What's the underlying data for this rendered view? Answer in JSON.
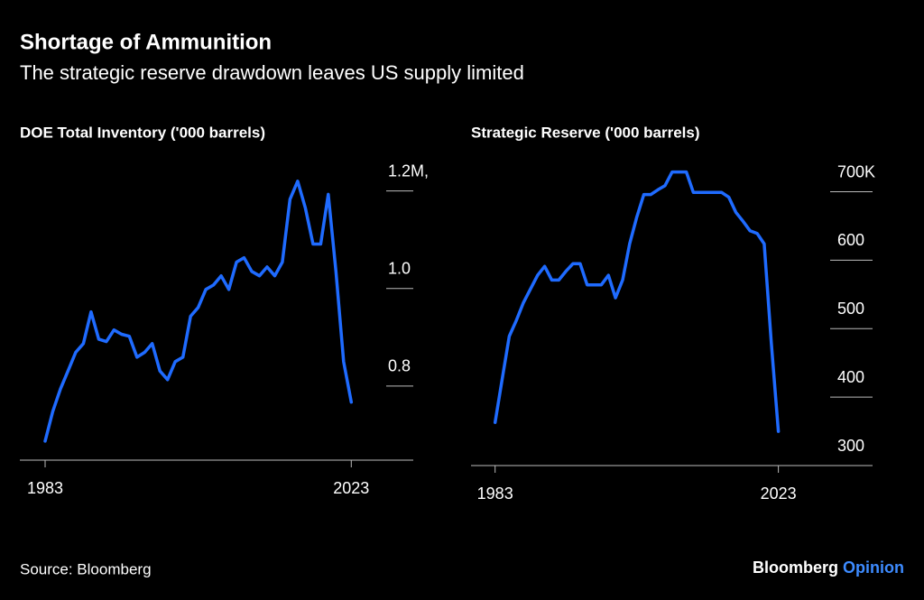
{
  "title": "Shortage of Ammunition",
  "subtitle": "The strategic reserve drawdown leaves US supply limited",
  "source": "Source: Bloomberg",
  "brand": {
    "name": "Bloomberg",
    "tag": "Opinion"
  },
  "chart_data": [
    {
      "type": "line",
      "title": "DOE Total Inventory ('000 barrels)",
      "color": "#1f6bff",
      "x": [
        1983,
        1984,
        1985,
        1986,
        1987,
        1988,
        1989,
        1990,
        1991,
        1992,
        1993,
        1994,
        1995,
        1996,
        1997,
        1998,
        1999,
        2000,
        2001,
        2002,
        2003,
        2004,
        2005,
        2006,
        2007,
        2008,
        2009,
        2010,
        2011,
        2012,
        2013,
        2014,
        2015,
        2016,
        2017,
        2018,
        2019,
        2020,
        2021,
        2022,
        2023
      ],
      "values": [
        0.687,
        0.748,
        0.794,
        0.831,
        0.869,
        0.887,
        0.952,
        0.896,
        0.891,
        0.915,
        0.906,
        0.902,
        0.859,
        0.869,
        0.887,
        0.831,
        0.813,
        0.85,
        0.859,
        0.943,
        0.961,
        0.998,
        1.007,
        1.026,
        0.998,
        1.054,
        1.063,
        1.035,
        1.026,
        1.044,
        1.026,
        1.054,
        1.183,
        1.22,
        1.165,
        1.091,
        1.091,
        1.193,
        1.035,
        0.85,
        0.767
      ],
      "xlim": [
        1979.7,
        2031.1
      ],
      "xticks": [
        1983,
        2023
      ],
      "ylim": [
        0.648,
        1.24
      ],
      "yticks": [
        0.8,
        {
          "value": 1,
          "label": "1.0"
        },
        {
          "value": 1.2,
          "label": "1.2M,"
        }
      ]
    },
    {
      "type": "line",
      "title": "Strategic Reserve ('000 barrels)",
      "color": "#1f6bff",
      "x": [
        1983,
        1984,
        1985,
        1986,
        1987,
        1988,
        1989,
        1990,
        1991,
        1992,
        1993,
        1994,
        1995,
        1996,
        1997,
        1998,
        1999,
        2000,
        2001,
        2002,
        2003,
        2004,
        2005,
        2006,
        2007,
        2008,
        2009,
        2010,
        2011,
        2012,
        2013,
        2014,
        2015,
        2016,
        2017,
        2018,
        2019,
        2020,
        2021,
        2022,
        2023
      ],
      "values": [
        363,
        426,
        489,
        512,
        538,
        558,
        578,
        591,
        571,
        571,
        584,
        595,
        595,
        564,
        564,
        564,
        578,
        545,
        571,
        624,
        663,
        696,
        696,
        703,
        709,
        729,
        729,
        729,
        699,
        699,
        699,
        699,
        699,
        692,
        670,
        657,
        643,
        639,
        624,
        479,
        350
      ],
      "xlim": [
        1979.6,
        2036.3
      ],
      "xticks": [
        1983,
        2023
      ],
      "ylim": [
        300,
        735
      ],
      "yticks": [
        300,
        400,
        500,
        600,
        {
          "value": 700,
          "label": "700K"
        }
      ]
    }
  ]
}
